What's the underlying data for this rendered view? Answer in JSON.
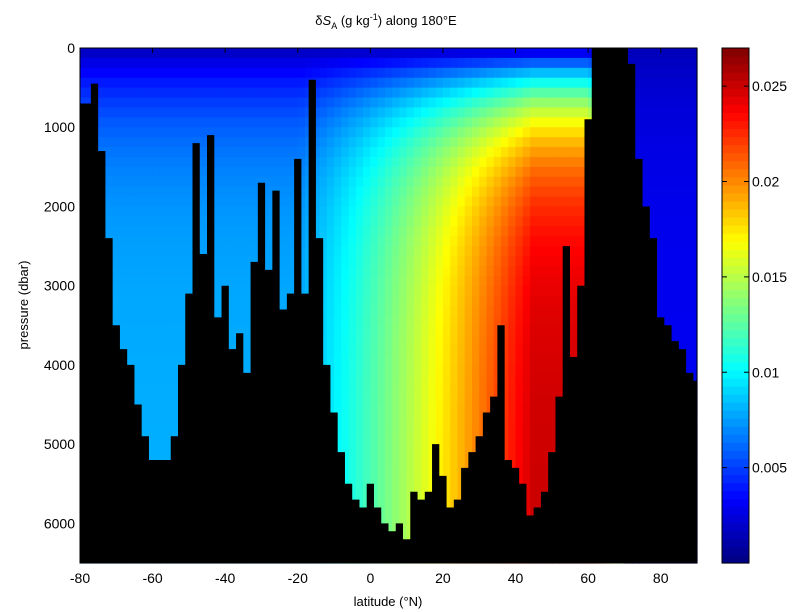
{
  "chart_data": {
    "type": "heatmap",
    "title_parts": {
      "delta": "δ",
      "S": "S",
      "sub": "A",
      "pre": " (g kg",
      "sup": "-1",
      "post": ") along 180°E"
    },
    "xlabel": "latitude (°N)",
    "ylabel": "pressure (dbar)",
    "xlim": [
      -80,
      90
    ],
    "ylim": [
      6500,
      0
    ],
    "xticks": [
      -80,
      -60,
      -40,
      -20,
      0,
      20,
      40,
      60,
      80
    ],
    "xtick_labels": [
      "-80",
      "-60",
      "-40",
      "-20",
      "0",
      "20",
      "40",
      "60",
      "80"
    ],
    "yticks": [
      0,
      1000,
      2000,
      3000,
      4000,
      5000,
      6000
    ],
    "ytick_labels": [
      "0",
      "1000",
      "2000",
      "3000",
      "4000",
      "5000",
      "6000"
    ],
    "colorbar": {
      "range": [
        0,
        0.027
      ],
      "ticks": [
        0.005,
        0.01,
        0.015,
        0.02,
        0.025
      ],
      "tick_labels": [
        "0.005",
        "0.01",
        "0.015",
        "0.02",
        "0.025"
      ],
      "colormap": "jet"
    },
    "land_color": "#000000",
    "bathymetry": {
      "lat": [
        -80,
        -78,
        -76,
        -74,
        -72,
        -70,
        -68,
        -66,
        -64,
        -62,
        -60,
        -58,
        -56,
        -54,
        -52,
        -50,
        -48,
        -46,
        -44,
        -42,
        -40,
        -38,
        -36,
        -34,
        -32,
        -30,
        -28,
        -26,
        -24,
        -22,
        -20,
        -18,
        -16,
        -14,
        -12,
        -10,
        -8,
        -6,
        -4,
        -2,
        0,
        2,
        4,
        6,
        8,
        10,
        12,
        14,
        16,
        18,
        20,
        22,
        24,
        26,
        28,
        30,
        32,
        34,
        36,
        38,
        40,
        42,
        44,
        46,
        48,
        50,
        52,
        54,
        56,
        58,
        60,
        62,
        64,
        66,
        68,
        70,
        72,
        74,
        76,
        78,
        80,
        82,
        84,
        86,
        88,
        90
      ],
      "bottom_depth": [
        700,
        700,
        450,
        1300,
        2400,
        3500,
        3800,
        4000,
        4500,
        4900,
        5200,
        5200,
        5200,
        4900,
        4000,
        3100,
        1200,
        2600,
        1100,
        3400,
        3000,
        3800,
        3600,
        4100,
        2700,
        1700,
        2800,
        1800,
        3300,
        3100,
        1400,
        3100,
        400,
        2400,
        4000,
        4600,
        5100,
        5500,
        5700,
        5800,
        5500,
        5800,
        6000,
        6100,
        6000,
        6200,
        5600,
        5700,
        5600,
        5000,
        5400,
        5800,
        5700,
        5300,
        5100,
        4900,
        4600,
        4400,
        3500,
        5200,
        5300,
        5500,
        5900,
        5800,
        5600,
        5100,
        4400,
        2500,
        3900,
        3000,
        900,
        0,
        0,
        0,
        0,
        0,
        200,
        1400,
        2000,
        2400,
        3400,
        3500,
        3700,
        3800,
        4100,
        4200
      ],
      "note_x": "latitude (°N)",
      "note_y": "pressure (dbar)"
    },
    "field_model": {
      "surface_low_depth_scale": 900,
      "north_peak_lat": 45,
      "peak_value": 0.025,
      "south_value": 0.008,
      "arctic_value": 0.003
    }
  }
}
